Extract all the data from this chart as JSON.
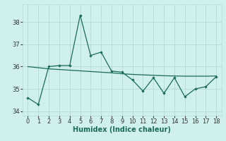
{
  "xlabel": "Humidex (Indice chaleur)",
  "bg_color": "#cff0ec",
  "grid_color": "#b8ddd8",
  "line_color": "#1a6b5a",
  "ylim": [
    33.8,
    38.8
  ],
  "yticks": [
    34,
    35,
    36,
    37,
    38
  ],
  "xlim": [
    -0.5,
    18.5
  ],
  "xticks": [
    0,
    1,
    2,
    3,
    4,
    5,
    6,
    7,
    8,
    9,
    10,
    11,
    12,
    13,
    14,
    15,
    16,
    17,
    18
  ],
  "series1_x": [
    0,
    1,
    2,
    3,
    4,
    5,
    6,
    7,
    8,
    9,
    10,
    11,
    12,
    13,
    14,
    15,
    16,
    17,
    18
  ],
  "series1_y": [
    34.6,
    34.3,
    36.0,
    36.05,
    36.05,
    38.3,
    36.5,
    36.65,
    35.8,
    35.75,
    35.4,
    34.9,
    35.5,
    34.8,
    35.5,
    34.65,
    35.0,
    35.1,
    35.55
  ],
  "series2_x": [
    0,
    1,
    2,
    3,
    4,
    5,
    6,
    7,
    8,
    9,
    10,
    11,
    12,
    13,
    14,
    15,
    16,
    17,
    18
  ],
  "series2_y": [
    36.0,
    35.95,
    35.9,
    35.87,
    35.84,
    35.81,
    35.78,
    35.75,
    35.72,
    35.68,
    35.65,
    35.63,
    35.61,
    35.59,
    35.58,
    35.57,
    35.57,
    35.57,
    35.58
  ],
  "xlabel_fontsize": 7,
  "tick_fontsize": 6
}
